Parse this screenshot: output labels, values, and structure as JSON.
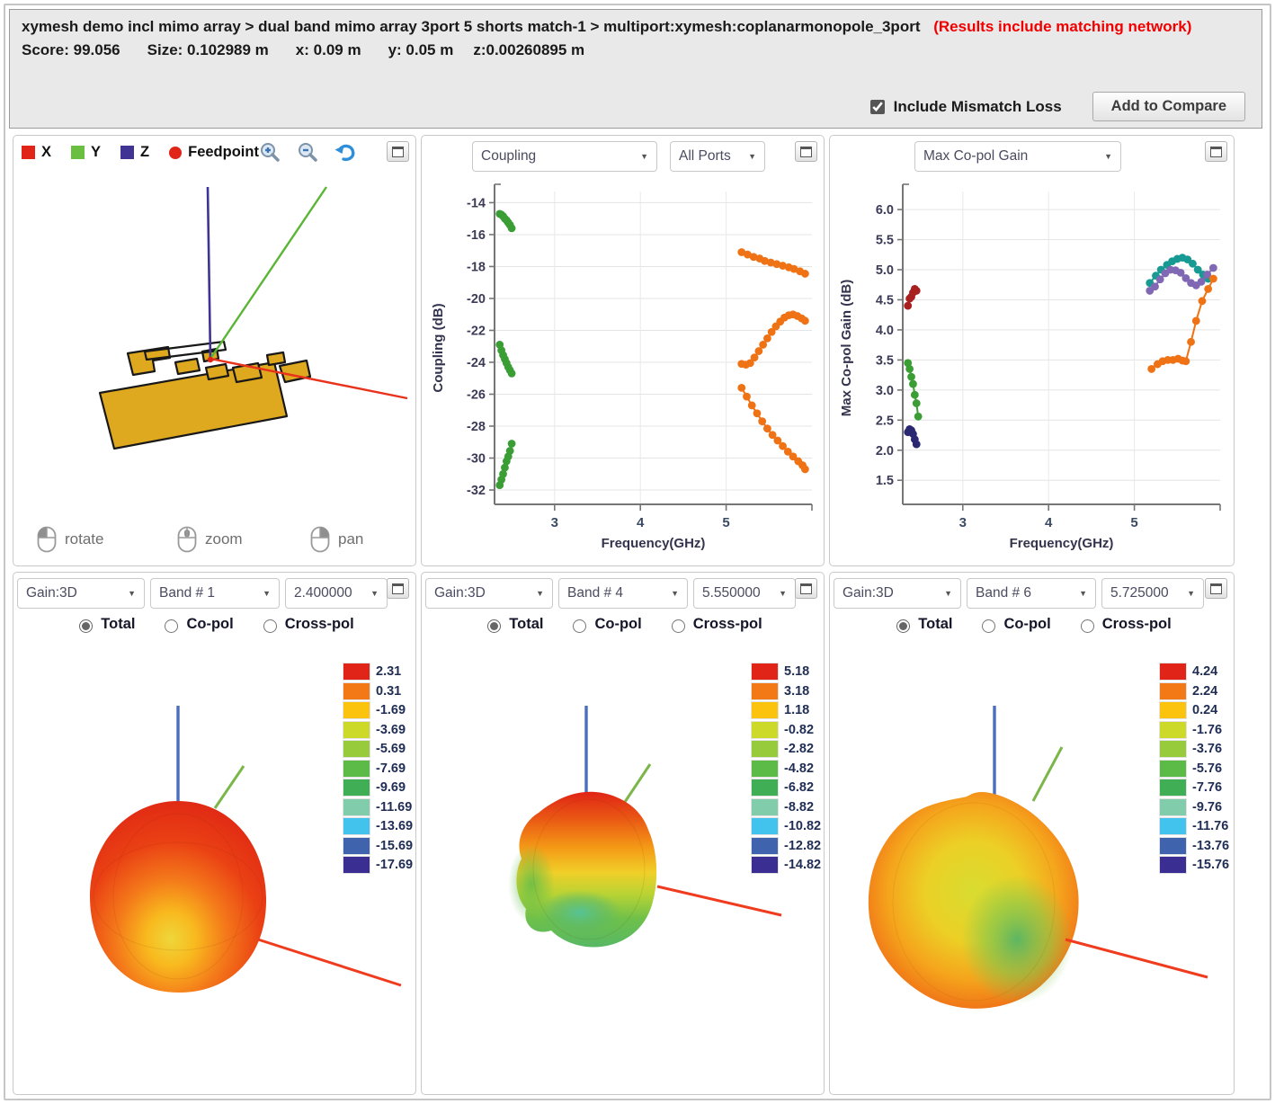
{
  "icons": {
    "dropdown_arrow": "▼"
  },
  "header": {
    "breadcrumb": "xymesh demo incl mimo array > dual band mimo array 3port 5 shorts match-1 > multiport:xymesh:coplanarmonopole_3port",
    "results_note": "(Results include matching network)",
    "score": "Score: 99.056",
    "size": "Size: 0.102989 m",
    "dim_x": "x: 0.09 m",
    "dim_y": "y: 0.05 m",
    "dim_z": "z:0.00260895 m",
    "mismatch_label": "Include Mismatch Loss",
    "mismatch_checked": true,
    "compare_button": "Add to Compare"
  },
  "viewer3d": {
    "legend": [
      {
        "label": "X",
        "color": "#e02418",
        "shape": "square"
      },
      {
        "label": "Y",
        "color": "#6abf40",
        "shape": "square"
      },
      {
        "label": "Z",
        "color": "#3f3393",
        "shape": "square"
      },
      {
        "label": "Feedpoint",
        "color": "#e02418",
        "shape": "circle"
      }
    ],
    "mouse_hints": [
      "rotate",
      "zoom",
      "pan"
    ],
    "axis_colors": {
      "x": "#e8321c",
      "y": "#5ab534",
      "z": "#3f3393"
    },
    "antenna_color": "#dfa91f"
  },
  "coupling_panel": {
    "type_dropdown": "Coupling",
    "ports_dropdown": "All Ports",
    "chart": {
      "type": "scatter",
      "xlabel": "Frequency(GHz)",
      "ylabel": "Coupling (dB)",
      "xlim": [
        2.3,
        6.0
      ],
      "ylim": [
        -32.9,
        -13.3
      ],
      "xticks": [
        3,
        4,
        5
      ],
      "xtick_labels": [
        "3",
        "4",
        "5"
      ],
      "yticks": [
        -14,
        -16,
        -18,
        -20,
        -22,
        -24,
        -26,
        -28,
        -30,
        -32
      ],
      "ytick_labels": [
        "-14",
        "-16",
        "-18",
        "-20",
        "-22",
        "-24",
        "-26",
        "-28",
        "-30",
        "-32"
      ],
      "series": [
        {
          "name": "green-low-1",
          "color": "#3a9e35",
          "x": [
            2.36,
            2.38,
            2.4,
            2.42,
            2.44,
            2.46,
            2.48,
            2.5
          ],
          "y": [
            -14.7,
            -14.75,
            -14.85,
            -15.0,
            -15.1,
            -15.25,
            -15.4,
            -15.6
          ]
        },
        {
          "name": "green-low-2",
          "color": "#3a9e35",
          "x": [
            2.36,
            2.38,
            2.4,
            2.42,
            2.44,
            2.46,
            2.48,
            2.5
          ],
          "y": [
            -22.9,
            -23.25,
            -23.55,
            -23.8,
            -24.05,
            -24.3,
            -24.5,
            -24.7
          ]
        },
        {
          "name": "green-low-3",
          "color": "#3a9e35",
          "x": [
            2.36,
            2.38,
            2.4,
            2.42,
            2.44,
            2.46,
            2.48,
            2.5
          ],
          "y": [
            -31.7,
            -31.35,
            -31.0,
            -30.6,
            -30.2,
            -29.9,
            -29.55,
            -29.1
          ]
        },
        {
          "name": "orange-high-1",
          "color": "#ef7215",
          "x": [
            5.18,
            5.25,
            5.32,
            5.39,
            5.45,
            5.52,
            5.59,
            5.66,
            5.73,
            5.79,
            5.86,
            5.92
          ],
          "y": [
            -17.1,
            -17.25,
            -17.4,
            -17.5,
            -17.65,
            -17.75,
            -17.85,
            -17.95,
            -18.05,
            -18.15,
            -18.3,
            -18.45
          ]
        },
        {
          "name": "orange-high-2",
          "color": "#ef7215",
          "x": [
            5.18,
            5.23,
            5.28,
            5.33,
            5.38,
            5.43,
            5.48,
            5.53,
            5.58,
            5.63,
            5.68,
            5.73,
            5.78,
            5.83,
            5.88,
            5.92
          ],
          "y": [
            -24.1,
            -24.15,
            -24.05,
            -23.7,
            -23.3,
            -22.9,
            -22.5,
            -22.1,
            -21.75,
            -21.45,
            -21.2,
            -21.05,
            -21.0,
            -21.1,
            -21.25,
            -21.4
          ]
        },
        {
          "name": "orange-high-3",
          "color": "#ef7215",
          "x": [
            5.18,
            5.24,
            5.3,
            5.36,
            5.42,
            5.48,
            5.54,
            5.6,
            5.66,
            5.72,
            5.78,
            5.84,
            5.89,
            5.92
          ],
          "y": [
            -25.6,
            -26.15,
            -26.7,
            -27.2,
            -27.7,
            -28.15,
            -28.55,
            -28.9,
            -29.25,
            -29.6,
            -29.9,
            -30.2,
            -30.45,
            -30.7
          ]
        }
      ]
    }
  },
  "max_gain_panel": {
    "dropdown": "Max Co-pol Gain",
    "chart": {
      "type": "scatter",
      "xlabel": "Frequency(GHz)",
      "ylabel": "Max Co-pol Gain (dB)",
      "xlim": [
        2.3,
        6.0
      ],
      "ylim": [
        1.1,
        6.3
      ],
      "xticks": [
        3,
        4,
        5
      ],
      "xtick_labels": [
        "3",
        "4",
        "5"
      ],
      "yticks": [
        1.5,
        2.0,
        2.5,
        3.0,
        3.5,
        4.0,
        4.5,
        5.0,
        5.5,
        6.0
      ],
      "ytick_labels": [
        "1.5",
        "2.0",
        "2.5",
        "3.0",
        "3.5",
        "4.0",
        "4.5",
        "5.0",
        "5.5",
        "6.0"
      ],
      "series": [
        {
          "name": "darkred-low",
          "color": "#a8201f",
          "x": [
            2.36,
            2.38,
            2.4,
            2.42,
            2.44,
            2.46
          ],
          "y": [
            4.4,
            4.52,
            4.55,
            4.62,
            4.68,
            4.65
          ]
        },
        {
          "name": "green-low",
          "color": "#3a9e35",
          "x": [
            2.36,
            2.38,
            2.4,
            2.42,
            2.44,
            2.46,
            2.48
          ],
          "y": [
            3.45,
            3.35,
            3.22,
            3.1,
            2.92,
            2.78,
            2.56
          ]
        },
        {
          "name": "navy-low",
          "color": "#2a2870",
          "x": [
            2.36,
            2.38,
            2.4,
            2.42,
            2.44,
            2.46
          ],
          "y": [
            2.3,
            2.35,
            2.33,
            2.27,
            2.18,
            2.1
          ]
        },
        {
          "name": "teal-high",
          "color": "#179a93",
          "x": [
            5.18,
            5.25,
            5.31,
            5.38,
            5.44,
            5.5,
            5.56,
            5.62,
            5.68,
            5.74,
            5.8,
            5.86
          ],
          "y": [
            4.78,
            4.9,
            5.0,
            5.08,
            5.14,
            5.18,
            5.2,
            5.17,
            5.1,
            5.0,
            4.92,
            4.85
          ]
        },
        {
          "name": "purple-high",
          "color": "#8068b5",
          "x": [
            5.18,
            5.24,
            5.3,
            5.36,
            5.42,
            5.48,
            5.54,
            5.6,
            5.66,
            5.72,
            5.78,
            5.85,
            5.92
          ],
          "y": [
            4.65,
            4.72,
            4.84,
            4.94,
            5.0,
            4.99,
            4.95,
            4.86,
            4.78,
            4.74,
            4.8,
            4.92,
            5.03
          ]
        },
        {
          "name": "orange-high",
          "color": "#ef7215",
          "x": [
            5.2,
            5.27,
            5.33,
            5.39,
            5.45,
            5.51,
            5.56,
            5.6,
            5.66,
            5.72,
            5.79,
            5.86,
            5.92
          ],
          "y": [
            3.35,
            3.43,
            3.48,
            3.5,
            3.5,
            3.52,
            3.49,
            3.48,
            3.8,
            4.15,
            4.48,
            4.68,
            4.85
          ]
        }
      ]
    }
  },
  "pattern_panels": [
    {
      "type_dropdown": "Gain:3D",
      "band_dropdown": "Band # 1",
      "freq_dropdown": "2.400000",
      "polarizations": [
        "Total",
        "Co-pol",
        "Cross-pol"
      ],
      "selected_polarization": "Total",
      "scale_values": [
        "2.31",
        "0.31",
        "-1.69",
        "-3.69",
        "-5.69",
        "-7.69",
        "-9.69",
        "-11.69",
        "-13.69",
        "-15.69",
        "-17.69"
      ]
    },
    {
      "type_dropdown": "Gain:3D",
      "band_dropdown": "Band # 4",
      "freq_dropdown": "5.550000",
      "polarizations": [
        "Total",
        "Co-pol",
        "Cross-pol"
      ],
      "selected_polarization": "Total",
      "scale_values": [
        "5.18",
        "3.18",
        "1.18",
        "-0.82",
        "-2.82",
        "-4.82",
        "-6.82",
        "-8.82",
        "-10.82",
        "-12.82",
        "-14.82"
      ]
    },
    {
      "type_dropdown": "Gain:3D",
      "band_dropdown": "Band # 6",
      "freq_dropdown": "5.725000",
      "polarizations": [
        "Total",
        "Co-pol",
        "Cross-pol"
      ],
      "selected_polarization": "Total",
      "scale_values": [
        "4.24",
        "2.24",
        "0.24",
        "-1.76",
        "-3.76",
        "-5.76",
        "-7.76",
        "-9.76",
        "-11.76",
        "-13.76",
        "-15.76"
      ]
    }
  ],
  "scale_colors": [
    "#e02418",
    "#f37916",
    "#fcc30e",
    "#cdd928",
    "#97cb3b",
    "#5bbb46",
    "#3fae54",
    "#81ccab",
    "#41c3ee",
    "#4063ae",
    "#3b2e92"
  ]
}
